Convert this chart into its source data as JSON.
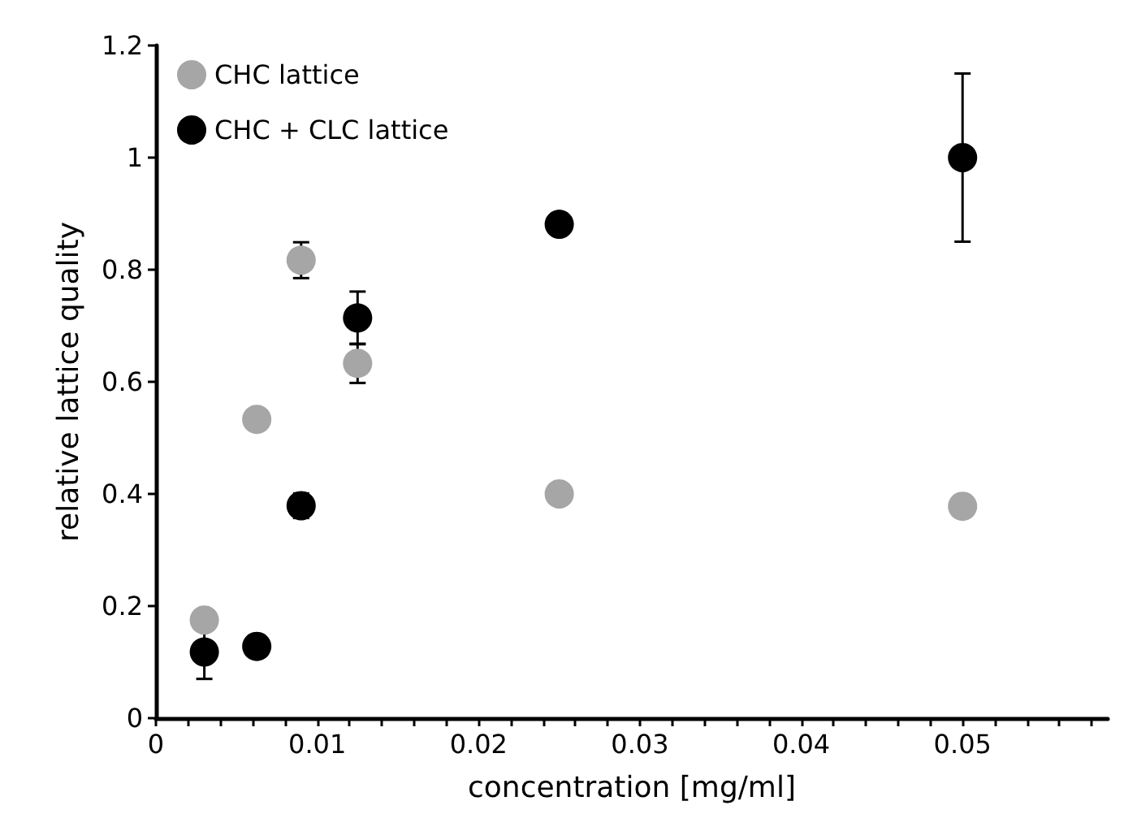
{
  "chart_data": {
    "type": "scatter",
    "xlabel": "concentration [mg/ml]",
    "ylabel": "relative lattice quality",
    "x": [
      0.003,
      0.00625,
      0.009,
      0.0125,
      0.025,
      0.05
    ],
    "series": [
      {
        "name": "CHC lattice",
        "color": "#a6a6a6",
        "values": [
          0.175,
          0.533,
          0.817,
          0.633,
          0.4,
          0.378
        ],
        "errors": [
          null,
          null,
          0.032,
          0.035,
          null,
          null
        ]
      },
      {
        "name": "CHC + CLC lattice",
        "color": "#000000",
        "values": [
          0.118,
          0.128,
          0.379,
          0.714,
          0.881,
          1.0
        ],
        "errors": [
          0.048,
          null,
          0.022,
          0.047,
          null,
          0.15
        ]
      }
    ],
    "xlim": [
      0,
      0.059
    ],
    "xticks": [
      0,
      {
        "value": 0.002,
        "label": null
      },
      {
        "value": 0.004,
        "label": null
      },
      {
        "value": 0.006,
        "label": null
      },
      {
        "value": 0.008,
        "label": null
      },
      0.01,
      {
        "value": 0.012,
        "label": null
      },
      {
        "value": 0.014,
        "label": null
      },
      {
        "value": 0.016,
        "label": null
      },
      {
        "value": 0.018,
        "label": null
      },
      0.02,
      {
        "value": 0.022,
        "label": null
      },
      {
        "value": 0.024,
        "label": null
      },
      {
        "value": 0.026,
        "label": null
      },
      {
        "value": 0.028,
        "label": null
      },
      0.03,
      {
        "value": 0.032,
        "label": null
      },
      {
        "value": 0.034,
        "label": null
      },
      {
        "value": 0.036,
        "label": null
      },
      {
        "value": 0.038,
        "label": null
      },
      0.04,
      {
        "value": 0.042,
        "label": null
      },
      {
        "value": 0.044,
        "label": null
      },
      {
        "value": 0.046,
        "label": null
      },
      {
        "value": 0.048,
        "label": null
      },
      0.05,
      {
        "value": 0.052,
        "label": null
      },
      {
        "value": 0.054,
        "label": null
      },
      {
        "value": 0.056,
        "label": null
      },
      {
        "value": 0.058,
        "label": null
      }
    ],
    "ylim": [
      0,
      1.2
    ],
    "yticks": [
      0,
      0.2,
      0.4,
      0.6,
      0.8,
      1,
      1.2
    ],
    "grid": false,
    "legend": "top left",
    "marker": "circle"
  }
}
